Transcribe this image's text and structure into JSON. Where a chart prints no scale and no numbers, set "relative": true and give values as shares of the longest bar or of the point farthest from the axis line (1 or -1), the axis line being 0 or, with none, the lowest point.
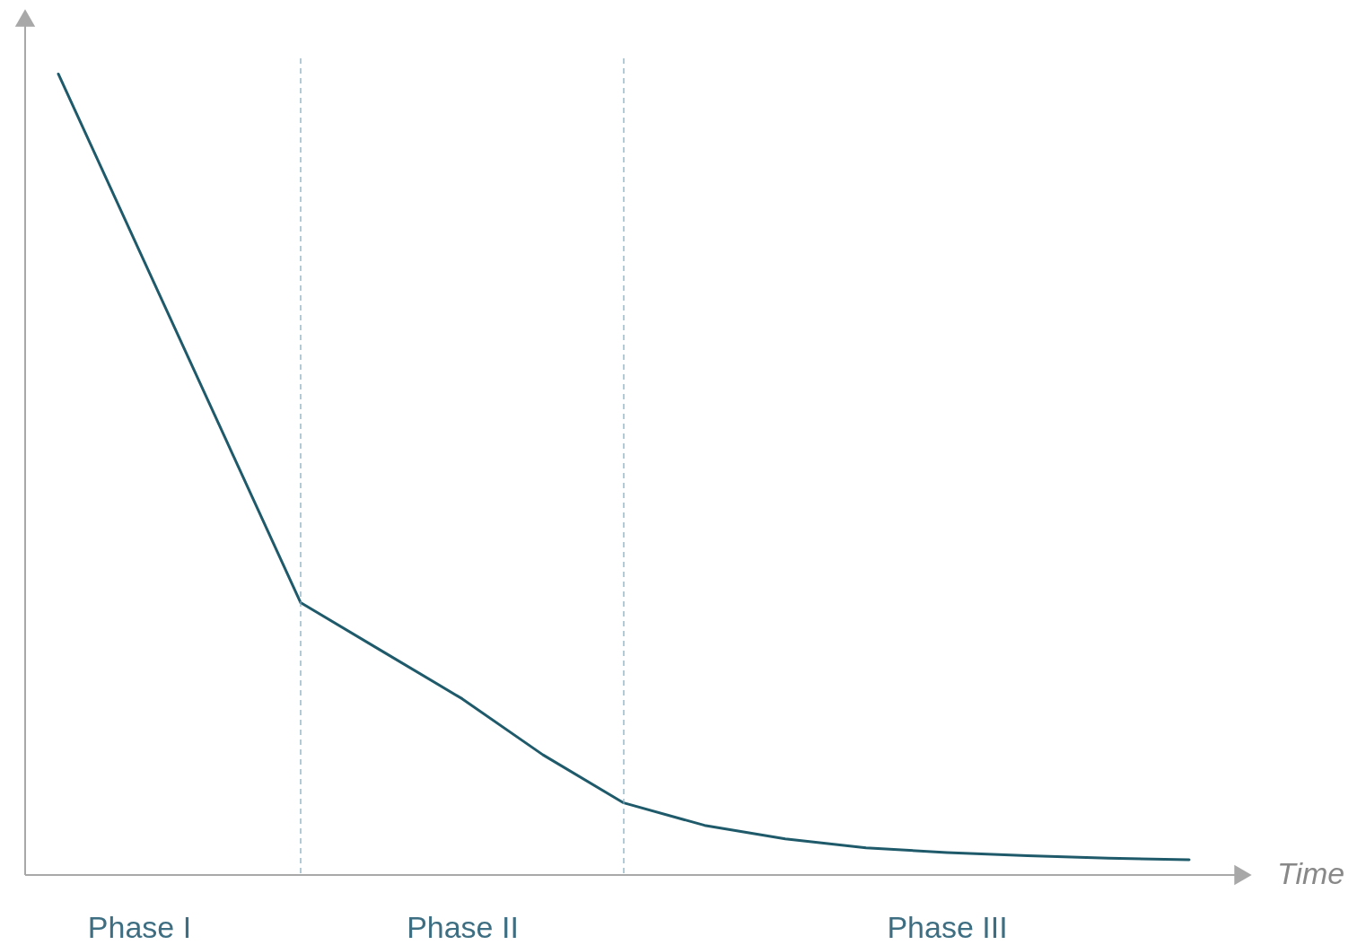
{
  "chart_data": {
    "type": "line",
    "relative": true,
    "xlabel": "Time",
    "tick_labels": "x",
    "categories": [
      null,
      "Phase I",
      null,
      null,
      null,
      "Phase II",
      null,
      null,
      null,
      null,
      null,
      "Phase III",
      null,
      null,
      null
    ],
    "series": [
      {
        "color": "#1f5a6b",
        "values": [
          1,
          0.78,
          0.56,
          0.34,
          0.28,
          0.22,
          0.15,
          0.09,
          0.062,
          0.045,
          0.034,
          0.028,
          0.024,
          0.021,
          0.019
        ]
      }
    ]
  }
}
